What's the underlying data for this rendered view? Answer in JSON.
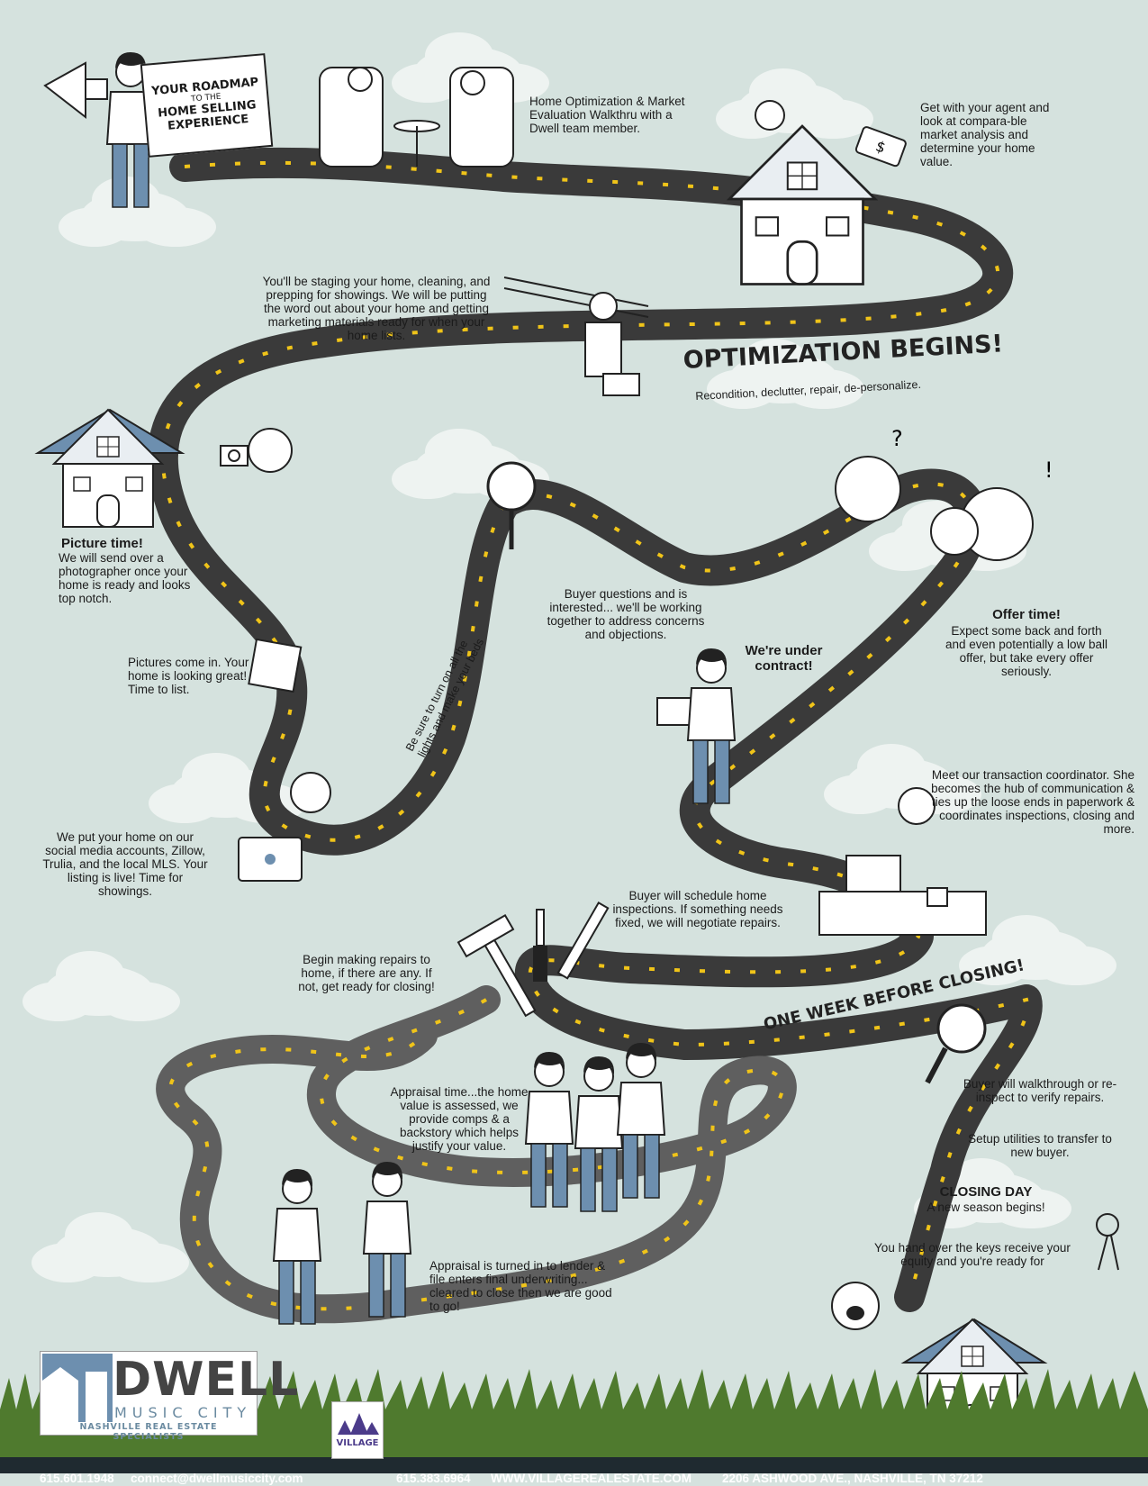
{
  "colors": {
    "background": "#d5e2de",
    "road": "#3a3a3a",
    "road_secondary": "#6b6b6b",
    "lane_mark": "#f0c419",
    "cloud": "#eef3f1",
    "grass": "#4f7a2e",
    "footer_bg": "#1f2a30",
    "denim": "#6d8faf"
  },
  "roadmap_sign": {
    "line1": "YOUR ROADMAP",
    "line2": "TO THE",
    "line3": "HOME SELLING",
    "line4": "EXPERIENCE"
  },
  "steps": {
    "walkthru": "Home Optimization & Market Evaluation Walkthru with a Dwell team member.",
    "agent": "Get with your agent and look at compara-ble market analysis and determine your home value.",
    "staging": "You'll be staging your home, cleaning, and prepping for showings. We will be putting the word out about your home and getting marketing materials ready for when your home lists.",
    "optimization_title": "OPTIMIZATION BEGINS!",
    "optimization_sub": "Recondition, declutter, repair, de-personalize.",
    "picture_title": "Picture time!",
    "picture_body": "We will send over a photographer once your home is ready and looks top notch.",
    "pictures_in": "Pictures come in. Your home is looking great! Time to list.",
    "lights": "Be sure to turn on all the lights and make your beds",
    "listing_live": "We put your home on our social media accounts, Zillow, Trulia, and the local MLS. Your listing is live! Time for showings.",
    "buyer_questions": "Buyer questions and is interested... we'll be working together to address concerns and objections.",
    "offer_title": "Offer time!",
    "offer_body": "Expect some back and forth and even potentially a low ball offer, but take every offer seriously.",
    "under_contract": "We're under contract!",
    "coordinator": "Meet our transaction coordinator. She becomes the hub of communication & ties up the loose ends in paperwork & coordinates inspections, closing and more.",
    "inspections": "Buyer will schedule home inspections. If something needs fixed, we will negotiate repairs.",
    "repairs": "Begin making repairs to home, if there are any. If not, get ready for closing!",
    "one_week": "ONE WEEK BEFORE CLOSING!",
    "appraisal": "Appraisal time...the home value is assessed, we provide comps & a backstory which helps justify your value.",
    "walkthrough": "Buyer will walkthrough or re-inspect to verify repairs.",
    "utilities": "Setup utilities to transfer to new buyer.",
    "closing_title": "CLOSING DAY",
    "closing_sub": "A new season begins!",
    "keys": "You hand over the keys receive your equity and you're ready for",
    "underwriting": "Appraisal is turned in to lender & file enters final underwriting... cleared to close then we are good to go!"
  },
  "logo": {
    "word": "DWELL",
    "sub": "MUSIC CITY",
    "tagline": "NASHVILLE REAL ESTATE SPECIALISTS",
    "village": "VILLAGE"
  },
  "footer": {
    "phone1": "615.601.1948",
    "email": "connect@dwellmusiccity.com",
    "phone2": "615.383.6964",
    "website": "WWW.VILLAGEREALESTATE.COM",
    "address": "2206 ASHWOOD AVE., NASHVILLE, TN 37212"
  },
  "icons": [
    "megaphone-icon",
    "house-icon",
    "price-tag-icon",
    "ladder-icon",
    "toolbox-icon",
    "camera-icon",
    "photo-icon",
    "magnifier-icon",
    "laptop-icon",
    "phone-icon",
    "book-icon",
    "hammer-icon",
    "screwdriver-icon",
    "wrench-icon",
    "keys-icon",
    "coffee-mug-icon"
  ]
}
